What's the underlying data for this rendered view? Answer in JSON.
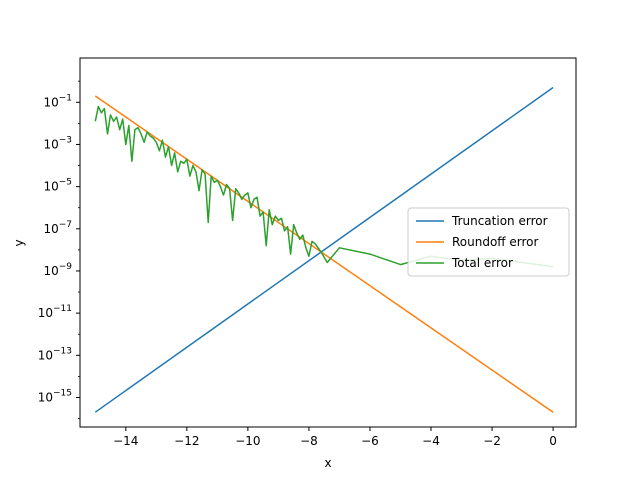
{
  "chart_data": {
    "type": "line",
    "title": "",
    "xlabel": "x",
    "ylabel": "y",
    "xlim": [
      -15.5,
      0.75
    ],
    "ylim_exponent": [
      -16.4,
      1.1
    ],
    "y_scale": "log",
    "grid": false,
    "legend_placement": "center-right",
    "x_ticks": [
      -14,
      -12,
      -10,
      -8,
      -6,
      -4,
      -2,
      0
    ],
    "x_tick_labels": [
      "−14",
      "−12",
      "−10",
      "−8",
      "−6",
      "−4",
      "−2",
      "0"
    ],
    "y_ticks": [
      {
        "base": "10",
        "exp": "−15",
        "power": -15
      },
      {
        "base": "10",
        "exp": "−13",
        "power": -13
      },
      {
        "base": "10",
        "exp": "−11",
        "power": -11
      },
      {
        "base": "10",
        "exp": "−9",
        "power": -9
      },
      {
        "base": "10",
        "exp": "−7",
        "power": -7
      },
      {
        "base": "10",
        "exp": "−5",
        "power": -5
      },
      {
        "base": "10",
        "exp": "−3",
        "power": -3
      },
      {
        "base": "10",
        "exp": "−1",
        "power": -1
      }
    ],
    "series": [
      {
        "name": "Truncation error",
        "color": "#1f77b4",
        "x": [
          -15,
          0
        ],
        "y_log10": [
          -15.7,
          -0.3
        ]
      },
      {
        "name": "Roundoff error",
        "color": "#ff7f0e",
        "x": [
          -15,
          0
        ],
        "y_log10": [
          -0.7,
          -15.7
        ]
      },
      {
        "name": "Total error",
        "color": "#2ca02c",
        "x": [
          -15,
          -14.9,
          -14.8,
          -14.7,
          -14.6,
          -14.5,
          -14.4,
          -14.3,
          -14.2,
          -14.1,
          -14.0,
          -13.9,
          -13.8,
          -13.7,
          -13.6,
          -13.5,
          -13.4,
          -13.3,
          -13.2,
          -13.1,
          -13.0,
          -12.9,
          -12.8,
          -12.7,
          -12.6,
          -12.5,
          -12.4,
          -12.3,
          -12.2,
          -12.1,
          -12.0,
          -11.9,
          -11.8,
          -11.7,
          -11.6,
          -11.5,
          -11.4,
          -11.3,
          -11.2,
          -11.1,
          -11.0,
          -10.9,
          -10.8,
          -10.7,
          -10.6,
          -10.5,
          -10.4,
          -10.3,
          -10.2,
          -10.1,
          -10.0,
          -9.9,
          -9.8,
          -9.7,
          -9.6,
          -9.5,
          -9.4,
          -9.3,
          -9.2,
          -9.1,
          -9.0,
          -8.9,
          -8.8,
          -8.7,
          -8.6,
          -8.5,
          -8.4,
          -8.3,
          -8.2,
          -8.1,
          -8.0,
          -7.9,
          -7.8,
          -7.6,
          -7.4,
          -7.0,
          -6.0,
          -5.0,
          -4.0,
          -3.0,
          -2.0,
          -1.0,
          0.0
        ],
        "y_log10": [
          -1.9,
          -1.2,
          -1.5,
          -1.3,
          -2.5,
          -1.6,
          -1.9,
          -1.7,
          -2.3,
          -1.8,
          -3.0,
          -2.1,
          -3.8,
          -2.3,
          -2.2,
          -2.5,
          -2.9,
          -2.4,
          -2.6,
          -2.7,
          -2.9,
          -3.3,
          -2.8,
          -3.6,
          -3.1,
          -4.0,
          -3.4,
          -4.3,
          -3.8,
          -3.9,
          -3.7,
          -4.5,
          -4.0,
          -4.3,
          -5.2,
          -4.2,
          -4.4,
          -6.7,
          -4.5,
          -4.8,
          -4.7,
          -5.0,
          -5.4,
          -4.9,
          -5.1,
          -6.6,
          -5.1,
          -5.3,
          -5.6,
          -5.4,
          -5.3,
          -6.0,
          -5.6,
          -5.5,
          -6.4,
          -6.2,
          -7.8,
          -6.1,
          -6.8,
          -6.4,
          -6.6,
          -6.5,
          -7.1,
          -6.9,
          -8.2,
          -6.8,
          -7.2,
          -7.5,
          -7.3,
          -7.9,
          -8.3,
          -7.6,
          -7.7,
          -8.1,
          -8.6,
          -7.9,
          -8.2,
          -8.7,
          -8.3,
          -8.5,
          -8.4,
          -8.6,
          -8.8
        ],
        "y_log10_override": null
      }
    ],
    "legend": [
      "Truncation error",
      "Roundoff error",
      "Total error"
    ]
  }
}
